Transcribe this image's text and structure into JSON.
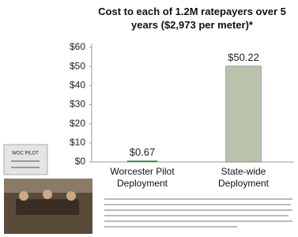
{
  "chart_data": {
    "type": "bar",
    "title": "Cost to each of 1.2M ratepayers over 5 years ($2,973 per meter)*",
    "categories": [
      "Worcester Pilot Deployment",
      "State-wide Deployment"
    ],
    "values": [
      0.67,
      50.22
    ],
    "value_labels": [
      "$0.67",
      "$50.22"
    ],
    "colors": [
      "#2e7d32",
      "#b9c2ab"
    ],
    "ylim": [
      0,
      60
    ],
    "yticks": [
      {
        "value": 0,
        "label": "$0"
      },
      {
        "value": 10,
        "label": "$10"
      },
      {
        "value": 20,
        "label": "$20"
      },
      {
        "value": 30,
        "label": "$30"
      },
      {
        "value": 40,
        "label": "$40"
      },
      {
        "value": 50,
        "label": "$50"
      },
      {
        "value": 60,
        "label": "$60"
      }
    ],
    "annotation": "WOC PILOT"
  }
}
